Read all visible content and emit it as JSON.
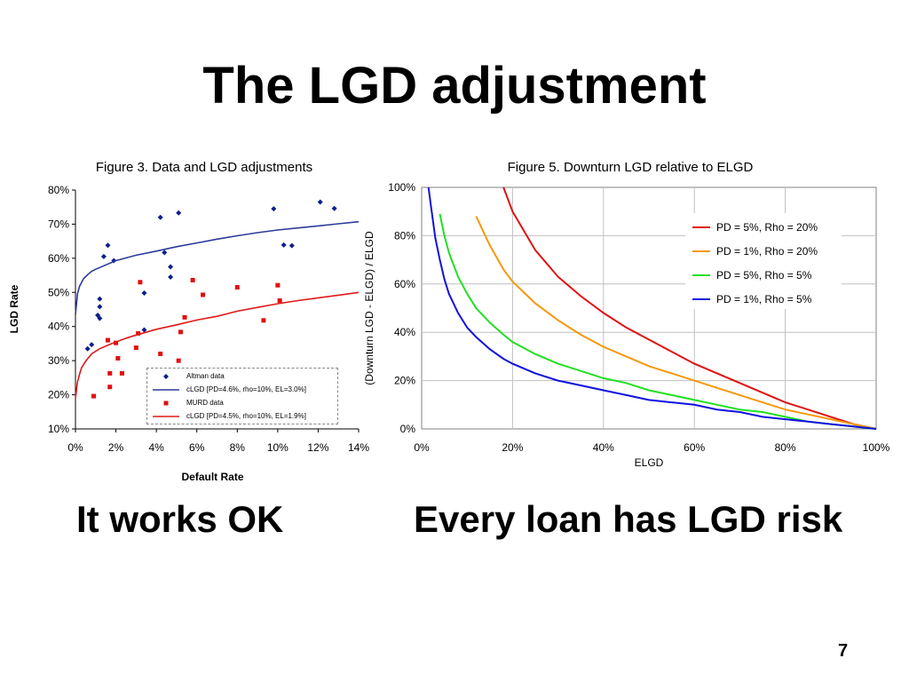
{
  "slide": {
    "title": "The LGD adjustment",
    "caption_left": "It works OK",
    "caption_right": "Every loan has LGD risk",
    "page_number": "7"
  },
  "chart_data": [
    {
      "type": "scatter",
      "title": "Figure 3. Data and LGD adjustments",
      "xlabel": "Default Rate",
      "ylabel": "LGD Rate",
      "xlim": [
        0,
        0.14
      ],
      "ylim": [
        0.1,
        0.8
      ],
      "x_ticks": [
        "0%",
        "2%",
        "4%",
        "6%",
        "8%",
        "10%",
        "12%",
        "14%"
      ],
      "y_ticks": [
        "10%",
        "20%",
        "30%",
        "40%",
        "50%",
        "60%",
        "70%",
        "80%"
      ],
      "grid": false,
      "legend_position": "bottom-center",
      "series": [
        {
          "name": "Altman data",
          "kind": "points",
          "marker": "diamond",
          "color": "#0b1e8c",
          "points": [
            [
              0.006,
              0.335
            ],
            [
              0.008,
              0.347
            ],
            [
              0.011,
              0.433
            ],
            [
              0.012,
              0.481
            ],
            [
              0.012,
              0.458
            ],
            [
              0.012,
              0.424
            ],
            [
              0.014,
              0.605
            ],
            [
              0.016,
              0.638
            ],
            [
              0.019,
              0.593
            ],
            [
              0.034,
              0.498
            ],
            [
              0.034,
              0.39
            ],
            [
              0.042,
              0.72
            ],
            [
              0.044,
              0.617
            ],
            [
              0.047,
              0.575
            ],
            [
              0.047,
              0.545
            ],
            [
              0.051,
              0.733
            ],
            [
              0.098,
              0.745
            ],
            [
              0.103,
              0.639
            ],
            [
              0.107,
              0.637
            ],
            [
              0.121,
              0.765
            ],
            [
              0.128,
              0.746
            ]
          ]
        },
        {
          "name": "cLGD [PD=4.6%, rho=10%, EL=3.0%]",
          "kind": "line",
          "color": "#2b3b9a",
          "points": [
            [
              0.0,
              0.435
            ],
            [
              0.001,
              0.496
            ],
            [
              0.002,
              0.518
            ],
            [
              0.004,
              0.54
            ],
            [
              0.006,
              0.552
            ],
            [
              0.008,
              0.562
            ],
            [
              0.01,
              0.568
            ],
            [
              0.014,
              0.578
            ],
            [
              0.02,
              0.593
            ],
            [
              0.03,
              0.609
            ],
            [
              0.04,
              0.621
            ],
            [
              0.05,
              0.634
            ],
            [
              0.06,
              0.645
            ],
            [
              0.07,
              0.656
            ],
            [
              0.08,
              0.666
            ],
            [
              0.09,
              0.675
            ],
            [
              0.1,
              0.683
            ],
            [
              0.11,
              0.689
            ],
            [
              0.12,
              0.695
            ],
            [
              0.13,
              0.701
            ],
            [
              0.14,
              0.707
            ]
          ]
        },
        {
          "name": "MURD data",
          "kind": "points",
          "marker": "square",
          "color": "#e01010",
          "points": [
            [
              0.009,
              0.196
            ],
            [
              0.016,
              0.36
            ],
            [
              0.017,
              0.263
            ],
            [
              0.017,
              0.223
            ],
            [
              0.02,
              0.352
            ],
            [
              0.021,
              0.307
            ],
            [
              0.023,
              0.263
            ],
            [
              0.03,
              0.338
            ],
            [
              0.031,
              0.38
            ],
            [
              0.032,
              0.53
            ],
            [
              0.042,
              0.32
            ],
            [
              0.051,
              0.3
            ],
            [
              0.052,
              0.384
            ],
            [
              0.054,
              0.427
            ],
            [
              0.058,
              0.536
            ],
            [
              0.063,
              0.493
            ],
            [
              0.08,
              0.515
            ],
            [
              0.093,
              0.418
            ],
            [
              0.1,
              0.521
            ],
            [
              0.101,
              0.476
            ]
          ]
        },
        {
          "name": "cLGD [PD=4.5%, rho=10%, EL=1.9%]",
          "kind": "line",
          "color": "#e01818",
          "points": [
            [
              0.0,
              0.19
            ],
            [
              0.001,
              0.238
            ],
            [
              0.002,
              0.26
            ],
            [
              0.003,
              0.279
            ],
            [
              0.005,
              0.298
            ],
            [
              0.008,
              0.32
            ],
            [
              0.012,
              0.335
            ],
            [
              0.018,
              0.35
            ],
            [
              0.025,
              0.366
            ],
            [
              0.03,
              0.375
            ],
            [
              0.04,
              0.392
            ],
            [
              0.05,
              0.405
            ],
            [
              0.06,
              0.419
            ],
            [
              0.07,
              0.43
            ],
            [
              0.08,
              0.445
            ],
            [
              0.09,
              0.456
            ],
            [
              0.1,
              0.467
            ],
            [
              0.11,
              0.476
            ],
            [
              0.12,
              0.484
            ],
            [
              0.13,
              0.492
            ],
            [
              0.14,
              0.5
            ]
          ]
        }
      ]
    },
    {
      "type": "line",
      "title": "Figure 5. Downturn LGD relative to ELGD",
      "xlabel": "ELGD",
      "ylabel": "(Downturn LGD - ELGD) / ELGD",
      "xlim": [
        0,
        1
      ],
      "ylim": [
        0,
        1
      ],
      "x_ticks": [
        "0%",
        "20%",
        "40%",
        "60%",
        "80%",
        "100%"
      ],
      "y_ticks": [
        "0%",
        "20%",
        "40%",
        "60%",
        "80%",
        "100%"
      ],
      "grid": true,
      "legend_position": "top-right",
      "x": [
        0.015,
        0.02,
        0.03,
        0.04,
        0.05,
        0.06,
        0.08,
        0.1,
        0.12,
        0.15,
        0.18,
        0.2,
        0.25,
        0.3,
        0.35,
        0.4,
        0.45,
        0.5,
        0.55,
        0.6,
        0.65,
        0.7,
        0.75,
        0.8,
        0.85,
        0.9,
        0.95,
        1.0
      ],
      "series": [
        {
          "name": "PD = 5%, Rho = 20%",
          "color": "#e01010",
          "values": [
            null,
            null,
            null,
            null,
            null,
            null,
            null,
            null,
            null,
            null,
            1.0,
            0.9,
            0.74,
            0.63,
            0.55,
            0.48,
            0.42,
            0.37,
            0.32,
            0.27,
            0.23,
            0.19,
            0.15,
            0.11,
            0.08,
            0.05,
            0.02,
            0.0
          ]
        },
        {
          "name": "PD = 1%, Rho = 20%",
          "color": "#f5980a",
          "values": [
            null,
            null,
            null,
            null,
            null,
            null,
            null,
            null,
            0.88,
            0.76,
            0.66,
            0.61,
            0.52,
            0.45,
            0.39,
            0.34,
            0.3,
            0.26,
            0.23,
            0.2,
            0.17,
            0.14,
            0.11,
            0.08,
            0.06,
            0.04,
            0.02,
            0.0
          ]
        },
        {
          "name": "PD = 5%, Rho = 5%",
          "color": "#22e022",
          "values": [
            null,
            null,
            null,
            0.89,
            0.8,
            0.73,
            0.63,
            0.56,
            0.5,
            0.44,
            0.39,
            0.36,
            0.31,
            0.27,
            0.24,
            0.21,
            0.19,
            0.16,
            0.14,
            0.12,
            0.1,
            0.08,
            0.07,
            0.05,
            0.03,
            0.02,
            0.01,
            0.0
          ]
        },
        {
          "name": "PD = 1%, Rho = 5%",
          "color": "#1010e0",
          "values": [
            1.0,
            0.93,
            0.79,
            0.7,
            0.62,
            0.56,
            0.48,
            0.42,
            0.38,
            0.33,
            0.29,
            0.27,
            0.23,
            0.2,
            0.18,
            0.16,
            0.14,
            0.12,
            0.11,
            0.1,
            0.08,
            0.07,
            0.05,
            0.04,
            0.03,
            0.02,
            0.01,
            0.0
          ]
        }
      ]
    }
  ]
}
